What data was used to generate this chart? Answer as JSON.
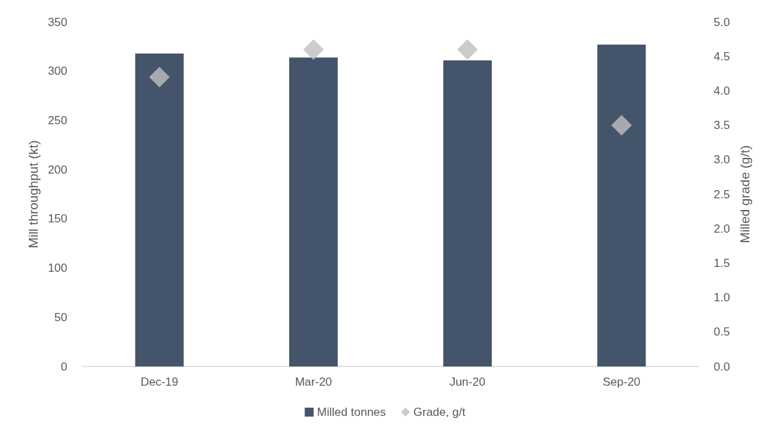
{
  "chart_data": {
    "type": "bar",
    "categories": [
      "Dec-19",
      "Mar-20",
      "Jun-20",
      "Sep-20"
    ],
    "series": [
      {
        "name": "Milled tonnes",
        "color": "#44546a",
        "values": [
          318,
          314,
          311,
          327
        ]
      },
      {
        "name": "Grade, g/t",
        "type": "scatter",
        "axis": "y2",
        "color": "#bfbfbf",
        "marker": "diamond",
        "values": [
          4.2,
          4.6,
          4.6,
          3.5
        ]
      }
    ],
    "ylabel": "Mill throughput (kt)",
    "y2label": "Milled grade (g/t)",
    "ylim": [
      0,
      350
    ],
    "yticks": [
      0,
      50,
      100,
      150,
      200,
      250,
      300,
      350
    ],
    "y2lim": [
      0,
      5
    ],
    "y2ticks": [
      {
        "value": 0,
        "label": "0.0"
      },
      {
        "value": 0.5,
        "label": "0.5"
      },
      {
        "value": 1,
        "label": "1.0"
      },
      {
        "value": 1.5,
        "label": "1.5"
      },
      {
        "value": 2,
        "label": "2.0"
      },
      {
        "value": 2.5,
        "label": "2.5"
      },
      {
        "value": 3,
        "label": "3.0"
      },
      {
        "value": 3.5,
        "label": "3.5"
      },
      {
        "value": 4,
        "label": "4.0"
      },
      {
        "value": 4.5,
        "label": "4.5"
      },
      {
        "value": 5,
        "label": "5.0"
      }
    ],
    "grid": false,
    "legend": "bottom"
  }
}
